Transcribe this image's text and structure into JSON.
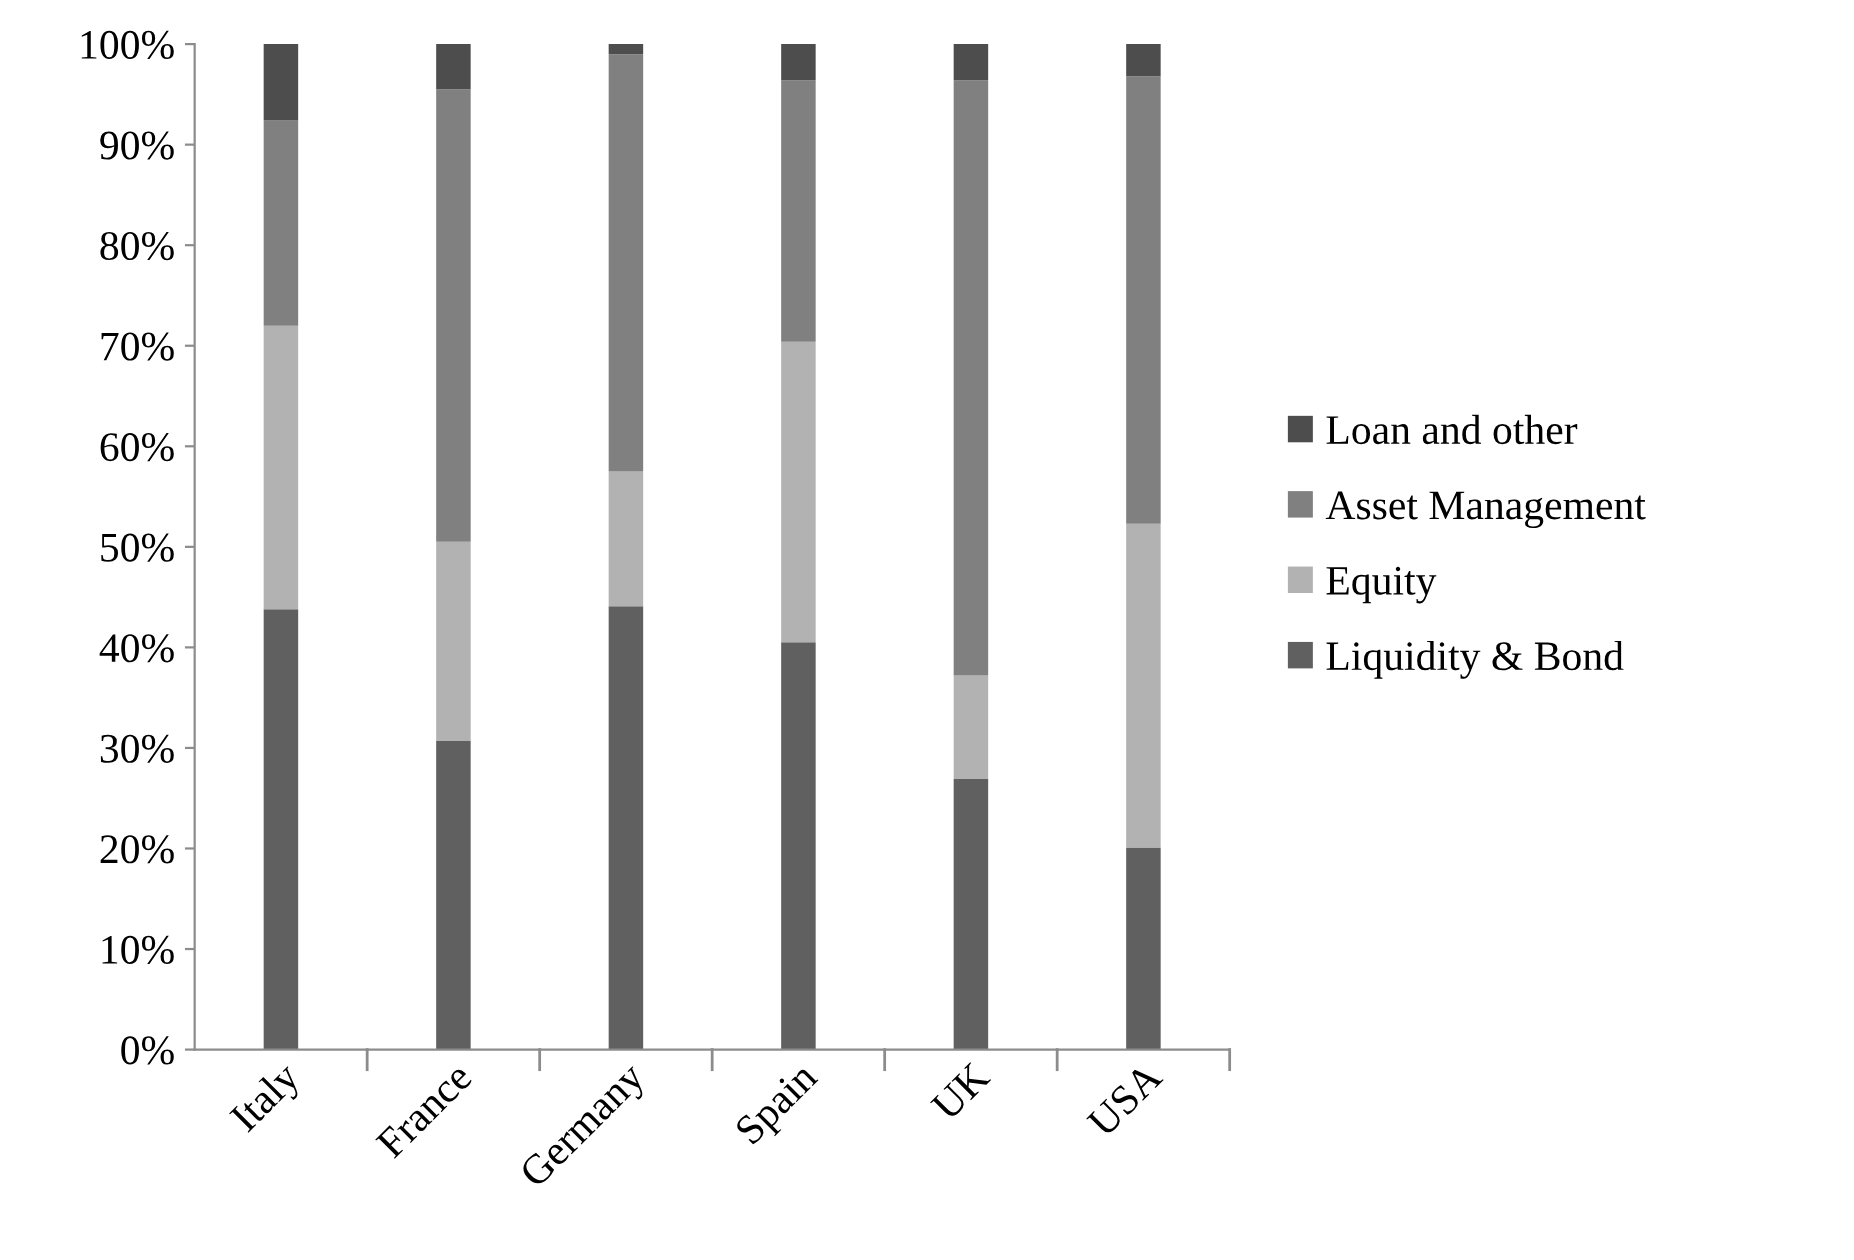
{
  "chart_data": {
    "type": "bar",
    "stacked": true,
    "categories": [
      "Italy",
      "France",
      "Germany",
      "Spain",
      "UK",
      "USA"
    ],
    "series": [
      {
        "name": "Liquidity & Bond",
        "color": "#606060",
        "values": [
          43.8,
          30.7,
          44.1,
          40.5,
          26.9,
          20.1
        ]
      },
      {
        "name": "Equity",
        "color": "#b2b2b2",
        "values": [
          28.2,
          19.8,
          13.4,
          29.9,
          10.3,
          32.2
        ]
      },
      {
        "name": "Asset Management",
        "color": "#808080",
        "values": [
          20.4,
          45.0,
          41.5,
          26.0,
          59.2,
          44.5
        ]
      },
      {
        "name": "Loan and other",
        "color": "#4d4d4d",
        "values": [
          7.6,
          4.5,
          1.0,
          3.6,
          3.6,
          3.2
        ]
      }
    ],
    "ylim": [
      0,
      100
    ],
    "yticks": [
      {
        "value": 0,
        "label": "0%"
      },
      {
        "value": 10,
        "label": "10%"
      },
      {
        "value": 20,
        "label": "20%"
      },
      {
        "value": 30,
        "label": "30%"
      },
      {
        "value": 40,
        "label": "40%"
      },
      {
        "value": 50,
        "label": "50%"
      },
      {
        "value": 60,
        "label": "60%"
      },
      {
        "value": 70,
        "label": "70%"
      },
      {
        "value": 80,
        "label": "80%"
      },
      {
        "value": 90,
        "label": "90%"
      },
      {
        "value": 100,
        "label": "100%"
      }
    ],
    "grid": false,
    "legend": "right"
  }
}
